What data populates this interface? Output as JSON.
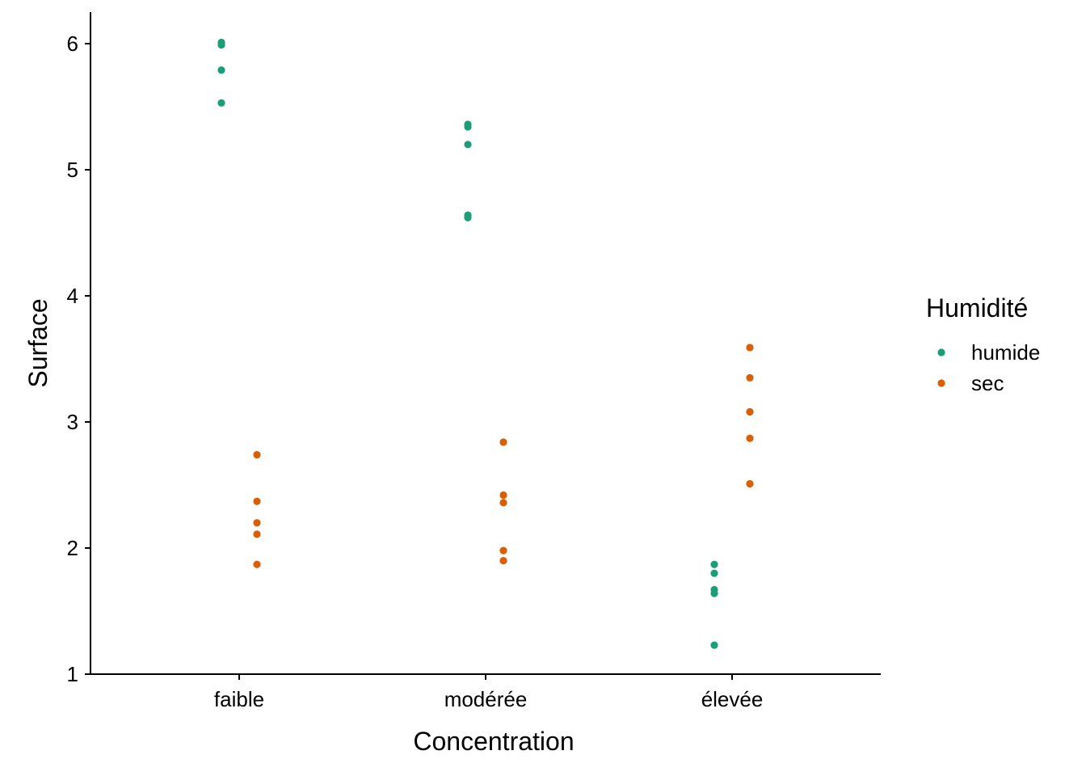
{
  "chart_data": {
    "type": "scatter",
    "xlabel": "Concentration",
    "ylabel": "Surface",
    "categories": [
      "faible",
      "modérée",
      "élevée"
    ],
    "ylim": [
      1,
      6.25
    ],
    "yticks": [
      1,
      2,
      3,
      4,
      5,
      6
    ],
    "grid": false,
    "legend": {
      "title": "Humidité",
      "position": "right"
    },
    "series": [
      {
        "name": "humide",
        "color": "#1b9e77",
        "points": [
          {
            "x": "faible",
            "y": 6.01
          },
          {
            "x": "faible",
            "y": 5.99
          },
          {
            "x": "faible",
            "y": 5.79
          },
          {
            "x": "faible",
            "y": 5.53
          },
          {
            "x": "modérée",
            "y": 5.36
          },
          {
            "x": "modérée",
            "y": 5.34
          },
          {
            "x": "modérée",
            "y": 5.2
          },
          {
            "x": "modérée",
            "y": 4.64
          },
          {
            "x": "modérée",
            "y": 4.62
          },
          {
            "x": "élevée",
            "y": 1.87
          },
          {
            "x": "élevée",
            "y": 1.8
          },
          {
            "x": "élevée",
            "y": 1.67
          },
          {
            "x": "élevée",
            "y": 1.64
          },
          {
            "x": "élevée",
            "y": 1.23
          }
        ]
      },
      {
        "name": "sec",
        "color": "#d95f02",
        "points": [
          {
            "x": "faible",
            "y": 2.74
          },
          {
            "x": "faible",
            "y": 2.37
          },
          {
            "x": "faible",
            "y": 2.2
          },
          {
            "x": "faible",
            "y": 2.11
          },
          {
            "x": "faible",
            "y": 1.87
          },
          {
            "x": "modérée",
            "y": 2.84
          },
          {
            "x": "modérée",
            "y": 2.42
          },
          {
            "x": "modérée",
            "y": 2.36
          },
          {
            "x": "modérée",
            "y": 1.98
          },
          {
            "x": "modérée",
            "y": 1.9
          },
          {
            "x": "élevée",
            "y": 3.59
          },
          {
            "x": "élevée",
            "y": 3.35
          },
          {
            "x": "élevée",
            "y": 3.08
          },
          {
            "x": "élevée",
            "y": 2.87
          },
          {
            "x": "élevée",
            "y": 2.51
          }
        ]
      }
    ]
  }
}
